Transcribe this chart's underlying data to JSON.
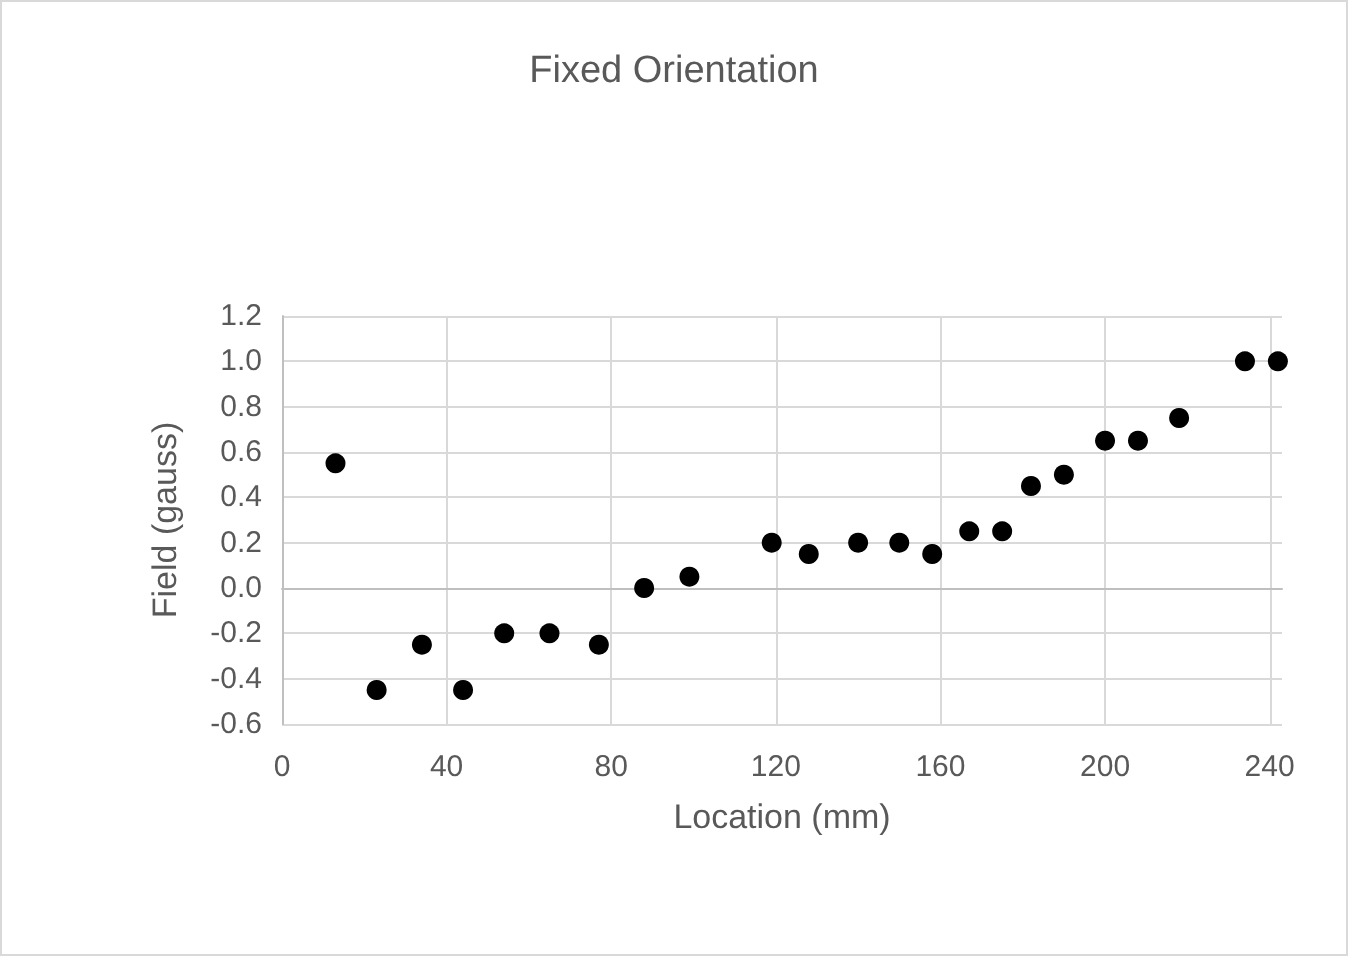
{
  "chart_data": {
    "type": "scatter",
    "title": "Fixed Orientation",
    "xlabel": "Location (mm)",
    "ylabel": "Field (gauss)",
    "x": [
      13,
      23,
      34,
      44,
      54,
      65,
      77,
      88,
      99,
      119,
      128,
      140,
      150,
      158,
      167,
      175,
      182,
      190,
      200,
      208,
      218,
      234,
      242
    ],
    "series": [
      {
        "color": "#000000",
        "values": [
          0.55,
          -0.45,
          -0.25,
          -0.45,
          -0.2,
          -0.2,
          -0.25,
          0.0,
          0.05,
          0.2,
          0.15,
          0.2,
          0.2,
          0.15,
          0.25,
          0.25,
          0.45,
          0.5,
          0.65,
          0.65,
          0.75,
          1.0,
          1.0
        ]
      }
    ],
    "xlim": [
      0,
      243
    ],
    "xticks": [
      0,
      40,
      80,
      120,
      160,
      200,
      240
    ],
    "ylim": [
      -0.6,
      1.2
    ],
    "yticks": [
      {
        "value": -0.6,
        "label": "-0.6"
      },
      {
        "value": -0.4,
        "label": "-0.4"
      },
      {
        "value": -0.2,
        "label": "-0.2"
      },
      {
        "value": 0,
        "label": "0.0"
      },
      {
        "value": 0.2,
        "label": "0.2"
      },
      {
        "value": 0.4,
        "label": "0.4"
      },
      {
        "value": 0.6,
        "label": "0.6"
      },
      {
        "value": 0.8,
        "label": "0.8"
      },
      {
        "value": 1.0,
        "label": "1.0"
      },
      {
        "value": 1.2,
        "label": "1.2"
      }
    ],
    "grid": true,
    "marker": "circle"
  }
}
